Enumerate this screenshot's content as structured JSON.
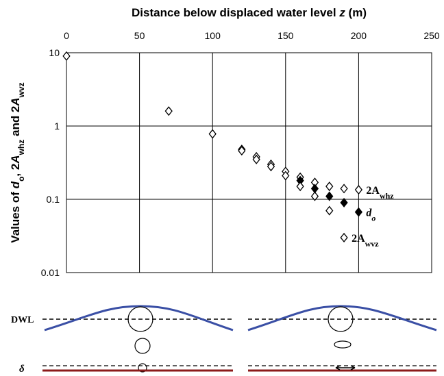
{
  "chart_data": {
    "type": "scatter",
    "xlabel": [
      {
        "text": "Distance below displaced water level "
      },
      {
        "text": "z",
        "italic": true
      },
      {
        "text": " (m)"
      }
    ],
    "ylabel": [
      {
        "text": "Values of "
      },
      {
        "text": "d",
        "italic": true
      },
      {
        "text": "o",
        "sub": true
      },
      {
        "text": ", 2"
      },
      {
        "text": "A",
        "italic": true
      },
      {
        "text": "whz",
        "sub": true
      },
      {
        "text": " and 2"
      },
      {
        "text": "A",
        "italic": true
      },
      {
        "text": "wvz",
        "sub": true
      }
    ],
    "xlim": [
      0,
      250
    ],
    "xticks": [
      0,
      50,
      100,
      150,
      200,
      250
    ],
    "ylim": [
      0.01,
      10
    ],
    "yticks": [
      0.01,
      0.1,
      1,
      10
    ],
    "log_y": true,
    "grid": true,
    "series": [
      {
        "name": "2A",
        "name_sub": "whz",
        "marker": "open",
        "color": "#000000",
        "x": [
          0,
          70,
          100,
          120,
          130,
          140,
          150,
          160,
          170,
          180,
          190,
          200
        ],
        "values": [
          9,
          1.6,
          0.78,
          0.48,
          0.38,
          0.3,
          0.24,
          0.2,
          0.17,
          0.15,
          0.14,
          0.135
        ]
      },
      {
        "name": "d",
        "name_sub": "o",
        "marker": "filled",
        "color": "#000000",
        "x": [
          160,
          170,
          180,
          190,
          200
        ],
        "values": [
          0.18,
          0.14,
          0.11,
          0.09,
          0.067
        ]
      },
      {
        "name": "2A",
        "name_sub": "wvz",
        "marker": "open",
        "color": "#000000",
        "x": [
          120,
          130,
          140,
          150,
          160,
          170,
          180,
          190
        ],
        "values": [
          0.46,
          0.35,
          0.28,
          0.21,
          0.15,
          0.11,
          0.07,
          0.03
        ]
      }
    ]
  },
  "diagram": {
    "labels": {
      "dwl": "DWL",
      "delta": "δ"
    }
  }
}
